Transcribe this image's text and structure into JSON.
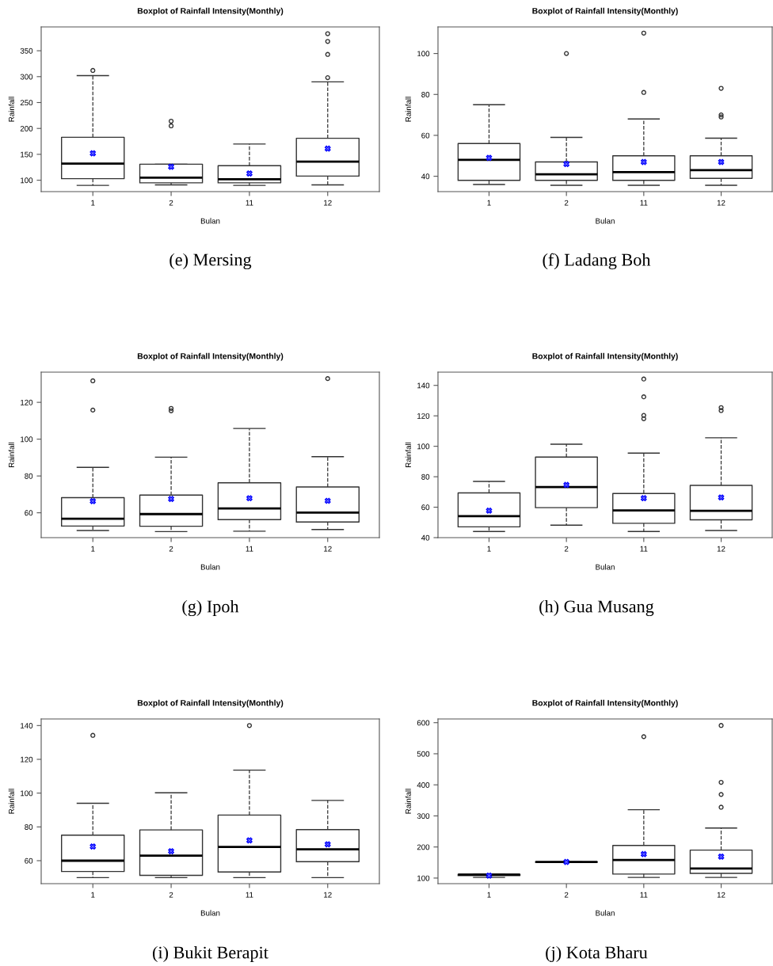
{
  "chart_data": [
    {
      "type": "box",
      "title": "Boxplot of Rainfall Intensity(Monthly)",
      "xlabel": "Bulan",
      "ylabel": "Rainfall",
      "categories": [
        "1",
        "2",
        "11",
        "12"
      ],
      "ylim": [
        78,
        396
      ],
      "yticks": [
        100,
        150,
        200,
        250,
        300,
        350
      ],
      "annotations": [
        "(e) Mersing"
      ],
      "boxes": [
        {
          "low": 90,
          "q1": 103,
          "median": 132,
          "q3": 183,
          "high": 302,
          "mean": 152,
          "outliers": [
            312
          ]
        },
        {
          "low": 91,
          "q1": 95,
          "median": 105,
          "q3": 131,
          "high": 131,
          "mean": 126,
          "outliers": [
            205,
            214
          ]
        },
        {
          "low": 90,
          "q1": 95,
          "median": 102,
          "q3": 128,
          "high": 170,
          "mean": 113
        },
        {
          "low": 91,
          "q1": 108,
          "median": 136,
          "q3": 181,
          "high": 290,
          "mean": 161,
          "outliers": [
            298,
            343,
            368,
            383
          ]
        }
      ]
    },
    {
      "type": "box",
      "title": "Boxplot of Rainfall Intensity(Monthly)",
      "xlabel": "Bulan",
      "ylabel": "Rainfall",
      "categories": [
        "1",
        "2",
        "11",
        "12"
      ],
      "ylim": [
        32.5,
        113
      ],
      "yticks": [
        40,
        60,
        80,
        100
      ],
      "annotations": [
        "(f) Ladang Boh"
      ],
      "boxes": [
        {
          "low": 36,
          "q1": 38,
          "median": 48,
          "q3": 56,
          "high": 75,
          "mean": 49
        },
        {
          "low": 35.6,
          "q1": 38,
          "median": 41,
          "q3": 47,
          "high": 59,
          "mean": 46,
          "outliers": [
            100
          ]
        },
        {
          "low": 35.6,
          "q1": 38,
          "median": 42,
          "q3": 50,
          "high": 68,
          "mean": 47,
          "outliers": [
            81,
            110
          ]
        },
        {
          "low": 35.6,
          "q1": 39,
          "median": 43,
          "q3": 50,
          "high": 58.6,
          "mean": 47,
          "outliers": [
            69,
            70,
            83
          ]
        }
      ]
    },
    {
      "type": "box",
      "title": "Boxplot of Rainfall Intensity(Monthly)",
      "xlabel": "Bulan",
      "ylabel": "Rainfall",
      "categories": [
        "1",
        "2",
        "11",
        "12"
      ],
      "ylim": [
        46.5,
        136.4
      ],
      "yticks": [
        60,
        80,
        100,
        120
      ],
      "annotations": [
        "(g) Ipoh"
      ],
      "boxes": [
        {
          "low": 50.4,
          "q1": 52.8,
          "median": 56.8,
          "q3": 68.2,
          "high": 84.7,
          "mean": 66.3,
          "outliers": [
            115.8,
            131.7
          ]
        },
        {
          "low": 49.8,
          "q1": 52.7,
          "median": 59.3,
          "q3": 69.6,
          "high": 90.2,
          "mean": 67.5,
          "outliers": [
            115.4,
            116.7
          ]
        },
        {
          "low": 50,
          "q1": 56.3,
          "median": 62.4,
          "q3": 76.3,
          "high": 105.8,
          "mean": 67.9
        },
        {
          "low": 50.9,
          "q1": 55,
          "median": 60.1,
          "q3": 74,
          "high": 90.5,
          "mean": 66.5,
          "outliers": [
            132.9
          ]
        }
      ]
    },
    {
      "type": "box",
      "title": "Boxplot of Rainfall Intensity(Monthly)",
      "xlabel": "Bulan",
      "ylabel": "Rainfall",
      "categories": [
        "1",
        "2",
        "11",
        "12"
      ],
      "ylim": [
        40,
        148.7
      ],
      "yticks": [
        40,
        60,
        80,
        100,
        120,
        140
      ],
      "annotations": [
        "(h) Gua Musang"
      ],
      "boxes": [
        {
          "low": 44,
          "q1": 47.1,
          "median": 54.1,
          "q3": 69.4,
          "high": 76.9,
          "mean": 57.7
        },
        {
          "low": 48.2,
          "q1": 59.7,
          "median": 73.2,
          "q3": 92.9,
          "high": 101.4,
          "mean": 74.6
        },
        {
          "low": 44,
          "q1": 49.4,
          "median": 57.9,
          "q3": 69,
          "high": 95.5,
          "mean": 65.9,
          "outliers": [
            118.1,
            120.3,
            132.5,
            144.2
          ]
        },
        {
          "low": 44.7,
          "q1": 51.7,
          "median": 57.6,
          "q3": 74.3,
          "high": 105.6,
          "mean": 66.4,
          "outliers": [
            123.5,
            125.4
          ]
        }
      ]
    },
    {
      "type": "box",
      "title": "Boxplot of Rainfall Intensity(Monthly)",
      "xlabel": "Bulan",
      "ylabel": "Rainfall",
      "categories": [
        "1",
        "2",
        "11",
        "12"
      ],
      "ylim": [
        46.4,
        143.9
      ],
      "yticks": [
        60,
        80,
        100,
        120,
        140
      ],
      "annotations": [
        "(i) Bukit Berapit"
      ],
      "boxes": [
        {
          "low": 50,
          "q1": 53.6,
          "median": 60,
          "q3": 75.1,
          "high": 94,
          "mean": 68.4,
          "outliers": [
            134.2
          ]
        },
        {
          "low": 50,
          "q1": 51.3,
          "median": 63,
          "q3": 78.2,
          "high": 100.2,
          "mean": 65.6
        },
        {
          "low": 50,
          "q1": 53.3,
          "median": 68.1,
          "q3": 87,
          "high": 113.6,
          "mean": 72,
          "outliers": [
            140
          ]
        },
        {
          "low": 50,
          "q1": 59.4,
          "median": 66.7,
          "q3": 78.4,
          "high": 95.7,
          "mean": 69.7
        }
      ]
    },
    {
      "type": "box",
      "title": "Boxplot of Rainfall Intensity(Monthly)",
      "xlabel": "Bulan",
      "ylabel": "Rainfall",
      "categories": [
        "1",
        "2",
        "11",
        "12"
      ],
      "ylim": [
        82,
        612
      ],
      "yticks": [
        100,
        200,
        300,
        400,
        500,
        600
      ],
      "annotations": [
        "(j) Kota Bharu"
      ],
      "boxes": [
        {
          "low": 102,
          "q1": 108,
          "median": 111,
          "q3": 112,
          "high": 112,
          "mean": 108
        },
        {
          "low": 151,
          "q1": 151,
          "median": 152,
          "q3": 152,
          "high": 152,
          "mean": 152
        },
        {
          "low": 102,
          "q1": 113,
          "median": 158,
          "q3": 205,
          "high": 320,
          "mean": 177,
          "outliers": [
            555
          ]
        },
        {
          "low": 102,
          "q1": 115,
          "median": 131,
          "q3": 190,
          "high": 261,
          "mean": 169,
          "outliers": [
            328,
            369,
            408,
            591
          ]
        }
      ]
    }
  ]
}
